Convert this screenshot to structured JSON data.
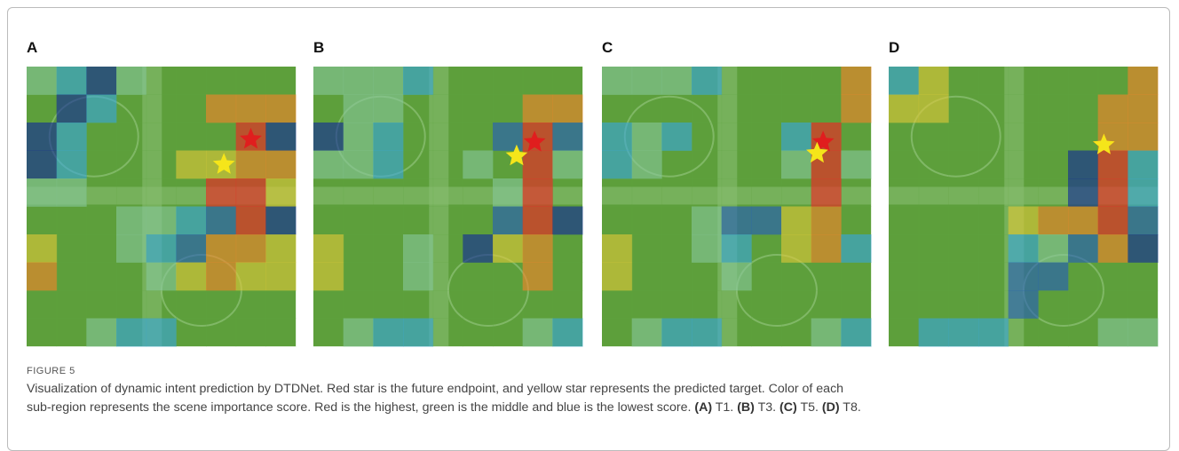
{
  "figure": {
    "panels": [
      {
        "label": "A",
        "caption_key": "(A)",
        "caption_text": "T1."
      },
      {
        "label": "B",
        "caption_key": "(B)",
        "caption_text": "T3."
      },
      {
        "label": "C",
        "caption_key": "(C)",
        "caption_text": "T5."
      },
      {
        "label": "D",
        "caption_key": "(D)",
        "caption_text": "T8."
      }
    ],
    "figure_label": "FIGURE 5",
    "caption_lines": [
      "Visualization of dynamic intent prediction by DTDNet. Red star is the future endpoint, and yellow star represents the predicted target. Color of each",
      "sub-region represents the scene importance score. Red is the highest, green is the middle and blue is the lowest score."
    ]
  }
}
